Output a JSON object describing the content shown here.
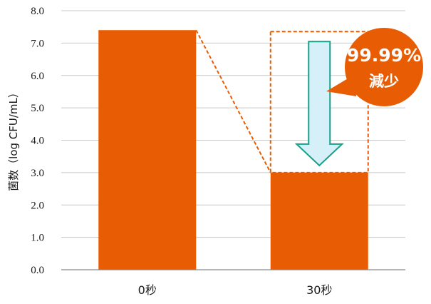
{
  "chart_data": {
    "type": "bar",
    "categories": [
      "0秒",
      "30秒"
    ],
    "values": [
      7.4,
      3.0
    ],
    "ylabel": "菌数（log CFU/mL）",
    "ylim": [
      0,
      8
    ],
    "yticks": [
      "0.0",
      "1.0",
      "2.0",
      "3.0",
      "4.0",
      "5.0",
      "6.0",
      "7.0",
      "8.0"
    ],
    "grid": true,
    "bar_color": "#e85d04",
    "annotation": {
      "line1": "99.99%",
      "line2": "減少",
      "bubble_color": "#e85d04",
      "arrow_fill": "#d6f0fa",
      "arrow_stroke": "#17a08a"
    }
  }
}
